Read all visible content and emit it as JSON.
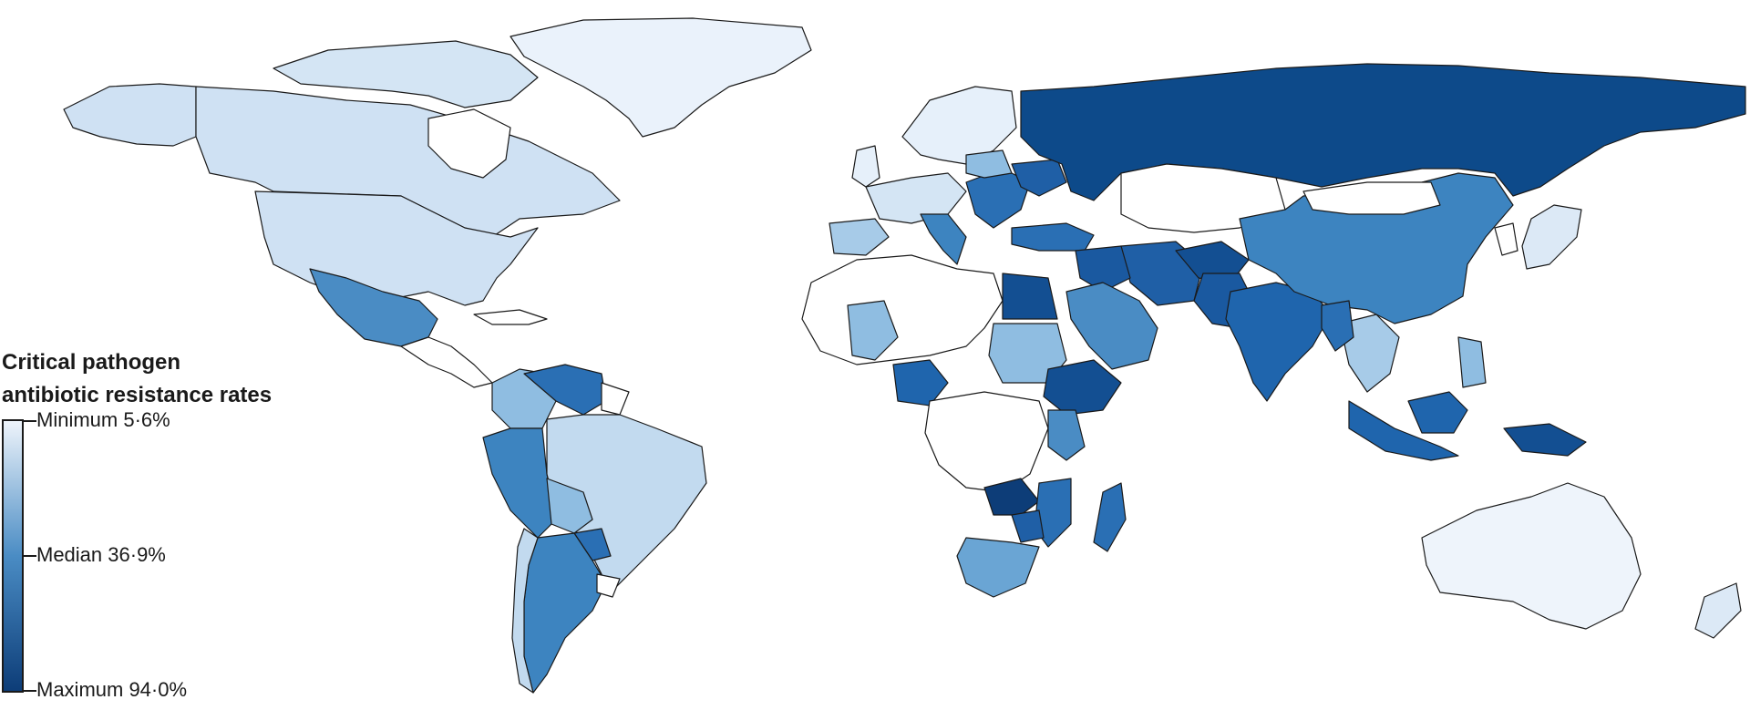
{
  "legend": {
    "title_line1": "Critical pathogen",
    "title_line2": "antibiotic resistance rates",
    "min_label": "Minimum 5·6%",
    "median_label": "Median 36·9%",
    "max_label": "Maximum 94·0%",
    "min_value": 5.6,
    "median_value": 36.9,
    "max_value": 94.0
  },
  "colors": {
    "no_data": "#ffffff",
    "minimum": "#eef4fb",
    "median": "#4a8cc4",
    "maximum": "#0d3d78",
    "outline": "#1a1a1a"
  }
}
